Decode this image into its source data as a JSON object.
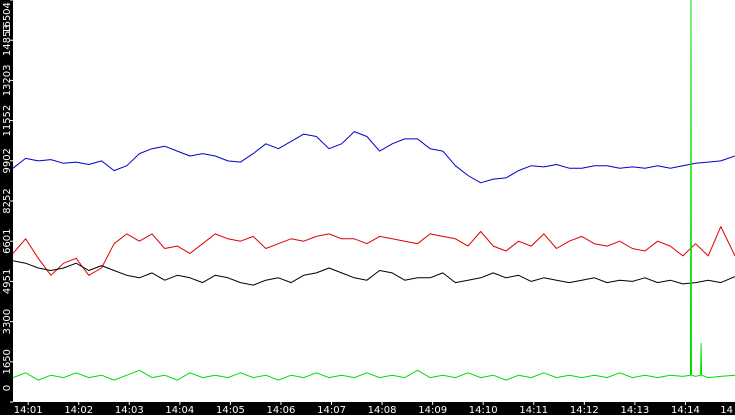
{
  "chart_data": {
    "type": "line",
    "title": "",
    "xlabel": "",
    "ylabel": "",
    "x_unit": "minutes since 14:00",
    "xlim": [
      0.7,
      14.98
    ],
    "ylim": [
      0,
      16504
    ],
    "y_ticks": [
      0,
      1650,
      3300,
      4951,
      6601,
      8252,
      9902,
      11552,
      13203,
      14853,
      16504
    ],
    "x_ticks": [
      {
        "label": "14:01",
        "x": 1
      },
      {
        "label": "14:02",
        "x": 2
      },
      {
        "label": "14:03",
        "x": 3
      },
      {
        "label": "14:04",
        "x": 4
      },
      {
        "label": "14:05",
        "x": 5
      },
      {
        "label": "14:06",
        "x": 6
      },
      {
        "label": "14:07",
        "x": 7
      },
      {
        "label": "14:08",
        "x": 8
      },
      {
        "label": "14:09",
        "x": 9
      },
      {
        "label": "14:10",
        "x": 10
      },
      {
        "label": "14:11",
        "x": 11
      },
      {
        "label": "14:12",
        "x": 12
      },
      {
        "label": "14:13",
        "x": 13
      },
      {
        "label": "14:14",
        "x": 14
      },
      {
        "label": "14",
        "x": 15
      }
    ],
    "grid": false,
    "background": "#ffffff",
    "axis_background": "#000000",
    "series": [
      {
        "color": "#0000cc",
        "x": [
          0.7,
          0.95,
          1.2,
          1.45,
          1.7,
          1.95,
          2.2,
          2.45,
          2.7,
          2.95,
          3.2,
          3.45,
          3.7,
          3.95,
          4.2,
          4.45,
          4.7,
          4.95,
          5.2,
          5.45,
          5.7,
          5.95,
          6.2,
          6.45,
          6.7,
          6.95,
          7.2,
          7.45,
          7.7,
          7.95,
          8.2,
          8.45,
          8.7,
          8.95,
          9.2,
          9.45,
          9.7,
          9.95,
          10.2,
          10.45,
          10.7,
          10.95,
          11.2,
          11.45,
          11.7,
          11.95,
          12.2,
          12.45,
          12.7,
          12.95,
          13.2,
          13.45,
          13.7,
          13.95,
          14.2,
          14.45,
          14.7,
          14.98
        ],
        "y": [
          9600,
          10000,
          9900,
          9950,
          9800,
          9850,
          9750,
          9900,
          9500,
          9700,
          10200,
          10400,
          10500,
          10300,
          10100,
          10200,
          10100,
          9900,
          9850,
          10200,
          10600,
          10400,
          10700,
          11000,
          10900,
          10400,
          10600,
          11100,
          10900,
          10300,
          10600,
          10800,
          10800,
          10400,
          10300,
          9700,
          9300,
          9000,
          9150,
          9200,
          9500,
          9700,
          9650,
          9750,
          9600,
          9600,
          9700,
          9700,
          9600,
          9650,
          9600,
          9700,
          9600,
          9700,
          9800,
          9850,
          9900,
          10100
        ]
      },
      {
        "color": "#dd0000",
        "x": [
          0.7,
          0.95,
          1.2,
          1.45,
          1.7,
          1.95,
          2.2,
          2.45,
          2.7,
          2.95,
          3.2,
          3.45,
          3.7,
          3.95,
          4.2,
          4.45,
          4.7,
          4.95,
          5.2,
          5.45,
          5.7,
          5.95,
          6.2,
          6.45,
          6.7,
          6.95,
          7.2,
          7.45,
          7.7,
          7.95,
          8.2,
          8.45,
          8.7,
          8.95,
          9.2,
          9.45,
          9.7,
          9.95,
          10.2,
          10.45,
          10.7,
          10.95,
          11.2,
          11.45,
          11.7,
          11.95,
          12.2,
          12.45,
          12.7,
          12.95,
          13.2,
          13.45,
          13.7,
          13.95,
          14.2,
          14.45,
          14.7,
          14.98
        ],
        "y": [
          6100,
          6700,
          5900,
          5200,
          5700,
          5900,
          5200,
          5500,
          6500,
          6900,
          6600,
          6900,
          6300,
          6400,
          6100,
          6500,
          6900,
          6700,
          6600,
          6800,
          6300,
          6500,
          6700,
          6600,
          6800,
          6900,
          6700,
          6700,
          6500,
          6800,
          6700,
          6600,
          6500,
          6900,
          6800,
          6700,
          6400,
          7000,
          6400,
          6200,
          6600,
          6400,
          6900,
          6300,
          6600,
          6800,
          6500,
          6400,
          6600,
          6300,
          6200,
          6600,
          6400,
          6000,
          6500,
          6000,
          7200,
          6000
        ]
      },
      {
        "color": "#000000",
        "x": [
          0.7,
          0.95,
          1.2,
          1.45,
          1.7,
          1.95,
          2.2,
          2.45,
          2.7,
          2.95,
          3.2,
          3.45,
          3.7,
          3.95,
          4.2,
          4.45,
          4.7,
          4.95,
          5.2,
          5.45,
          5.7,
          5.95,
          6.2,
          6.45,
          6.7,
          6.95,
          7.2,
          7.45,
          7.7,
          7.95,
          8.2,
          8.45,
          8.7,
          8.95,
          9.2,
          9.45,
          9.7,
          9.95,
          10.2,
          10.45,
          10.7,
          10.95,
          11.2,
          11.45,
          11.7,
          11.95,
          12.2,
          12.45,
          12.7,
          12.95,
          13.2,
          13.45,
          13.7,
          13.95,
          14.2,
          14.45,
          14.7,
          14.98
        ],
        "y": [
          5800,
          5700,
          5500,
          5400,
          5500,
          5700,
          5400,
          5600,
          5400,
          5200,
          5100,
          5300,
          5000,
          5200,
          5100,
          4900,
          5200,
          5100,
          4900,
          4800,
          5000,
          5100,
          4900,
          5200,
          5300,
          5500,
          5300,
          5100,
          5000,
          5400,
          5300,
          5000,
          5100,
          5100,
          5300,
          4900,
          5000,
          5100,
          5300,
          5100,
          5200,
          4950,
          5100,
          5000,
          4900,
          5000,
          5100,
          4900,
          5000,
          4950,
          5100,
          4900,
          5000,
          4850,
          4900,
          5000,
          4900,
          5150
        ]
      },
      {
        "color": "#00dd00",
        "x": [
          0.7,
          0.95,
          1.2,
          1.45,
          1.7,
          1.95,
          2.2,
          2.45,
          2.7,
          2.95,
          3.2,
          3.45,
          3.7,
          3.95,
          4.2,
          4.45,
          4.7,
          4.95,
          5.2,
          5.45,
          5.7,
          5.95,
          6.2,
          6.45,
          6.7,
          6.95,
          7.2,
          7.45,
          7.7,
          7.95,
          8.2,
          8.45,
          8.7,
          8.95,
          9.2,
          9.45,
          9.7,
          9.95,
          10.2,
          10.45,
          10.7,
          10.95,
          11.2,
          11.45,
          11.7,
          11.95,
          12.2,
          12.45,
          12.7,
          12.95,
          13.2,
          13.45,
          13.7,
          13.95,
          14.1,
          14.11,
          14.12,
          14.2,
          14.3,
          14.31,
          14.32,
          14.45,
          14.7,
          14.98
        ],
        "y": [
          1000,
          1200,
          900,
          1100,
          1000,
          1200,
          1000,
          1100,
          900,
          1100,
          1300,
          1000,
          1100,
          900,
          1200,
          1000,
          1100,
          1000,
          1200,
          1000,
          1100,
          900,
          1100,
          1000,
          1200,
          1000,
          1100,
          1000,
          1200,
          1000,
          1100,
          1000,
          1300,
          1000,
          1100,
          1000,
          1200,
          1000,
          1100,
          900,
          1100,
          1000,
          1200,
          1000,
          1100,
          1000,
          1100,
          1000,
          1200,
          1000,
          1100,
          1000,
          1100,
          1050,
          1100,
          16504,
          1100,
          1050,
          1100,
          2400,
          1100,
          1000,
          1050,
          1100
        ]
      }
    ]
  }
}
